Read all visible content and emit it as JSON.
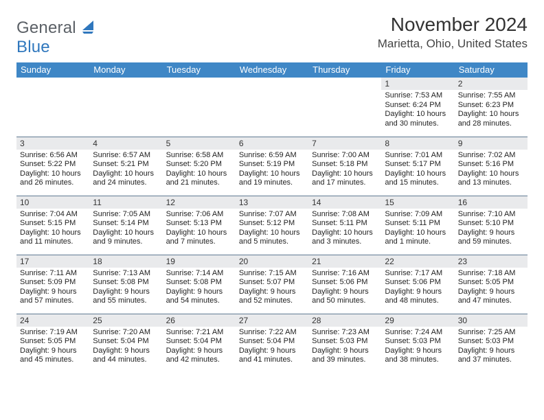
{
  "brand": {
    "text1": "General",
    "text2": "Blue",
    "sail_color": "#2f77bd"
  },
  "header": {
    "month_title": "November 2024",
    "location": "Marietta, Ohio, United States"
  },
  "calendar": {
    "header_bg": "#3f87c6",
    "header_fg": "#ffffff",
    "daynum_bg": "#e9eaec",
    "rule_color": "#5f7a92",
    "day_labels": [
      "Sunday",
      "Monday",
      "Tuesday",
      "Wednesday",
      "Thursday",
      "Friday",
      "Saturday"
    ],
    "weeks": [
      [
        {
          "empty": true
        },
        {
          "empty": true
        },
        {
          "empty": true
        },
        {
          "empty": true
        },
        {
          "empty": true
        },
        {
          "n": "1",
          "sunrise": "7:53 AM",
          "sunset": "6:24 PM",
          "daylight": "10 hours and 30 minutes."
        },
        {
          "n": "2",
          "sunrise": "7:55 AM",
          "sunset": "6:23 PM",
          "daylight": "10 hours and 28 minutes."
        }
      ],
      [
        {
          "n": "3",
          "sunrise": "6:56 AM",
          "sunset": "5:22 PM",
          "daylight": "10 hours and 26 minutes."
        },
        {
          "n": "4",
          "sunrise": "6:57 AM",
          "sunset": "5:21 PM",
          "daylight": "10 hours and 24 minutes."
        },
        {
          "n": "5",
          "sunrise": "6:58 AM",
          "sunset": "5:20 PM",
          "daylight": "10 hours and 21 minutes."
        },
        {
          "n": "6",
          "sunrise": "6:59 AM",
          "sunset": "5:19 PM",
          "daylight": "10 hours and 19 minutes."
        },
        {
          "n": "7",
          "sunrise": "7:00 AM",
          "sunset": "5:18 PM",
          "daylight": "10 hours and 17 minutes."
        },
        {
          "n": "8",
          "sunrise": "7:01 AM",
          "sunset": "5:17 PM",
          "daylight": "10 hours and 15 minutes."
        },
        {
          "n": "9",
          "sunrise": "7:02 AM",
          "sunset": "5:16 PM",
          "daylight": "10 hours and 13 minutes."
        }
      ],
      [
        {
          "n": "10",
          "sunrise": "7:04 AM",
          "sunset": "5:15 PM",
          "daylight": "10 hours and 11 minutes."
        },
        {
          "n": "11",
          "sunrise": "7:05 AM",
          "sunset": "5:14 PM",
          "daylight": "10 hours and 9 minutes."
        },
        {
          "n": "12",
          "sunrise": "7:06 AM",
          "sunset": "5:13 PM",
          "daylight": "10 hours and 7 minutes."
        },
        {
          "n": "13",
          "sunrise": "7:07 AM",
          "sunset": "5:12 PM",
          "daylight": "10 hours and 5 minutes."
        },
        {
          "n": "14",
          "sunrise": "7:08 AM",
          "sunset": "5:11 PM",
          "daylight": "10 hours and 3 minutes."
        },
        {
          "n": "15",
          "sunrise": "7:09 AM",
          "sunset": "5:11 PM",
          "daylight": "10 hours and 1 minute."
        },
        {
          "n": "16",
          "sunrise": "7:10 AM",
          "sunset": "5:10 PM",
          "daylight": "9 hours and 59 minutes."
        }
      ],
      [
        {
          "n": "17",
          "sunrise": "7:11 AM",
          "sunset": "5:09 PM",
          "daylight": "9 hours and 57 minutes."
        },
        {
          "n": "18",
          "sunrise": "7:13 AM",
          "sunset": "5:08 PM",
          "daylight": "9 hours and 55 minutes."
        },
        {
          "n": "19",
          "sunrise": "7:14 AM",
          "sunset": "5:08 PM",
          "daylight": "9 hours and 54 minutes."
        },
        {
          "n": "20",
          "sunrise": "7:15 AM",
          "sunset": "5:07 PM",
          "daylight": "9 hours and 52 minutes."
        },
        {
          "n": "21",
          "sunrise": "7:16 AM",
          "sunset": "5:06 PM",
          "daylight": "9 hours and 50 minutes."
        },
        {
          "n": "22",
          "sunrise": "7:17 AM",
          "sunset": "5:06 PM",
          "daylight": "9 hours and 48 minutes."
        },
        {
          "n": "23",
          "sunrise": "7:18 AM",
          "sunset": "5:05 PM",
          "daylight": "9 hours and 47 minutes."
        }
      ],
      [
        {
          "n": "24",
          "sunrise": "7:19 AM",
          "sunset": "5:05 PM",
          "daylight": "9 hours and 45 minutes."
        },
        {
          "n": "25",
          "sunrise": "7:20 AM",
          "sunset": "5:04 PM",
          "daylight": "9 hours and 44 minutes."
        },
        {
          "n": "26",
          "sunrise": "7:21 AM",
          "sunset": "5:04 PM",
          "daylight": "9 hours and 42 minutes."
        },
        {
          "n": "27",
          "sunrise": "7:22 AM",
          "sunset": "5:04 PM",
          "daylight": "9 hours and 41 minutes."
        },
        {
          "n": "28",
          "sunrise": "7:23 AM",
          "sunset": "5:03 PM",
          "daylight": "9 hours and 39 minutes."
        },
        {
          "n": "29",
          "sunrise": "7:24 AM",
          "sunset": "5:03 PM",
          "daylight": "9 hours and 38 minutes."
        },
        {
          "n": "30",
          "sunrise": "7:25 AM",
          "sunset": "5:03 PM",
          "daylight": "9 hours and 37 minutes."
        }
      ]
    ]
  },
  "labels": {
    "sunrise": "Sunrise: ",
    "sunset": "Sunset: ",
    "daylight": "Daylight: "
  }
}
